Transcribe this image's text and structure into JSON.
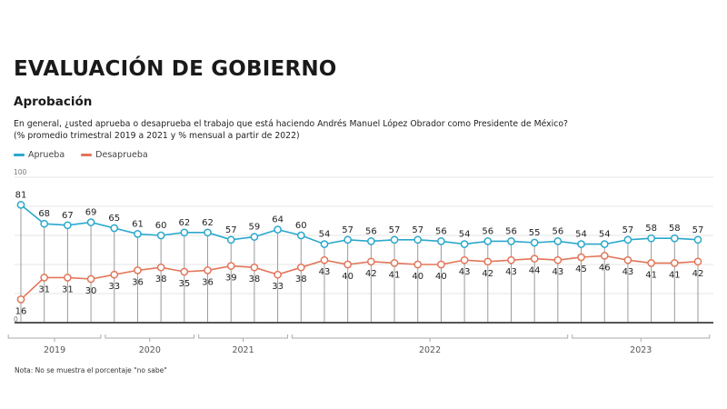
{
  "header": {
    "title": "EVALUACIÓN DE GOBIERNO",
    "subtitle": "Aprobación",
    "question": "En general, ¿usted aprueba o desaprueba el trabajo que está haciendo Andrés Manuel López Obrador como Presidente de México?",
    "note_line": "(% promedio trimestral 2019 a 2021 y % mensual a partir de 2022)"
  },
  "footer": {
    "note": "Nota: No se muestra el porcentaje \"no sabe\""
  },
  "colors": {
    "aprueba": "#2aa8cc",
    "desaprueba": "#e2765a"
  },
  "chart_data": {
    "type": "line",
    "title": "EVALUACIÓN DE GOBIERNO — Aprobación",
    "xlabel": "",
    "ylabel": "%",
    "ylim": [
      0,
      100
    ],
    "yticks": [
      0,
      20,
      40,
      60,
      80,
      100
    ],
    "ytick_labels_shown": [
      "0",
      "100"
    ],
    "grid": true,
    "legend_position": "top-left",
    "x": [
      "2019-T1",
      "2019-T2",
      "2019-T3",
      "2019-T4",
      "2020-T1",
      "2020-T2",
      "2020-T3",
      "2020-T4",
      "2021-T1",
      "2021-T2",
      "2021-T3",
      "2021-T4",
      "2022-01",
      "2022-02",
      "2022-03",
      "2022-04",
      "2022-05",
      "2022-06",
      "2022-07",
      "2022-08",
      "2022-09",
      "2022-10",
      "2022-11",
      "2022-12",
      "2023-01",
      "2023-02",
      "2023-03",
      "2023-04",
      "2023-05",
      "2023-06"
    ],
    "year_groups": [
      {
        "label": "2019",
        "start": 0,
        "end": 3
      },
      {
        "label": "2020",
        "start": 4,
        "end": 7
      },
      {
        "label": "2021",
        "start": 8,
        "end": 11
      },
      {
        "label": "2022",
        "start": 12,
        "end": 23
      },
      {
        "label": "2023",
        "start": 24,
        "end": 29
      }
    ],
    "series": [
      {
        "name": "Aprueba",
        "color": "#2aa8cc",
        "values": [
          81,
          68,
          67,
          69,
          65,
          61,
          60,
          62,
          62,
          57,
          59,
          64,
          60,
          54,
          57,
          56,
          57,
          57,
          56,
          54,
          56,
          56,
          55,
          56,
          54,
          54,
          57,
          58,
          58,
          57
        ]
      },
      {
        "name": "Desaprueba",
        "color": "#e2765a",
        "values": [
          16,
          31,
          31,
          30,
          33,
          36,
          38,
          35,
          36,
          39,
          38,
          33,
          38,
          43,
          40,
          42,
          41,
          40,
          40,
          43,
          42,
          43,
          44,
          43,
          45,
          46,
          43,
          41,
          41,
          42
        ]
      }
    ]
  }
}
